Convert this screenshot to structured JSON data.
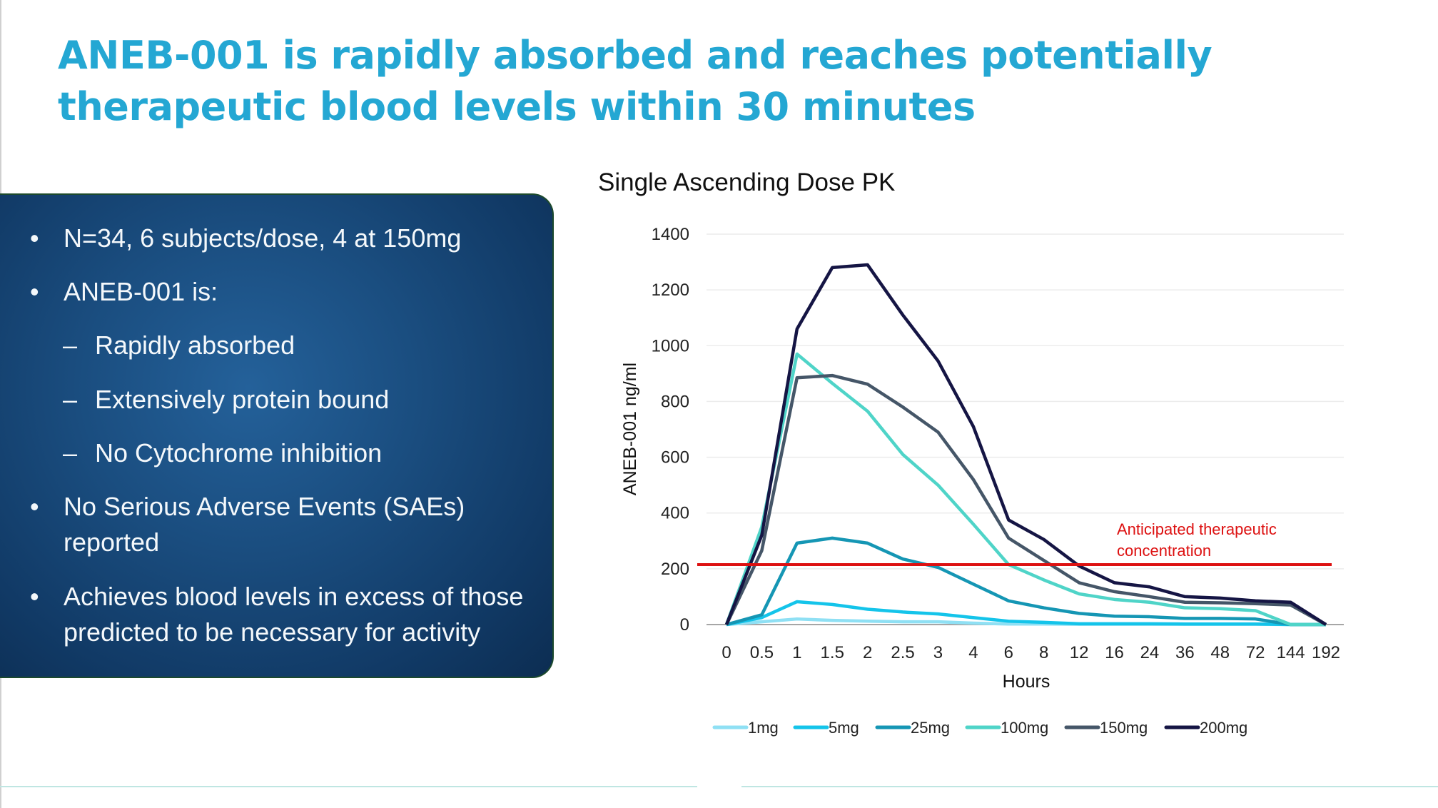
{
  "slide": {
    "title_line1": "ANEB-001 is rapidly absorbed and reaches potentially",
    "title_line2": "therapeutic blood levels within 30 minutes",
    "bullets": [
      {
        "marker": "•",
        "text": "N=34, 6 subjects/dose, 4 at 150mg",
        "level": 1
      },
      {
        "marker": "•",
        "text": "ANEB-001 is:",
        "level": 1
      },
      {
        "marker": "–",
        "text": "Rapidly absorbed",
        "level": 2
      },
      {
        "marker": "–",
        "text": "Extensively protein bound",
        "level": 2
      },
      {
        "marker": "–",
        "text": "No Cytochrome inhibition",
        "level": 2
      },
      {
        "marker": "•",
        "text": "No Serious Adverse Events (SAEs) reported",
        "level": 1
      },
      {
        "marker": "•",
        "text": "Achieves blood levels in excess of those predicted to be necessary for activity",
        "level": 1
      }
    ]
  },
  "chart_data": {
    "type": "line",
    "title": "Single Ascending Dose PK",
    "xlabel": "Hours",
    "ylabel": "ANEB-001 ng/ml",
    "ylim": [
      0,
      1400
    ],
    "yticks": [
      0,
      200,
      400,
      600,
      800,
      1000,
      1200,
      1400
    ],
    "grid": true,
    "legend": "bottom",
    "categories": [
      "0",
      "0.5",
      "1",
      "1.5",
      "2",
      "2.5",
      "3",
      "4",
      "6",
      "8",
      "12",
      "16",
      "24",
      "36",
      "48",
      "72",
      "144",
      "192"
    ],
    "series": [
      {
        "name": "1mg",
        "color": "#8fe0f4",
        "values": [
          0,
          10,
          20,
          15,
          12,
          10,
          10,
          5,
          2,
          2,
          1,
          1,
          1,
          1,
          1,
          1,
          0,
          0
        ]
      },
      {
        "name": "5mg",
        "color": "#14c4ea",
        "values": [
          0,
          25,
          82,
          72,
          55,
          45,
          38,
          25,
          12,
          8,
          3,
          3,
          3,
          2,
          2,
          2,
          0,
          0
        ]
      },
      {
        "name": "25mg",
        "color": "#1596b4",
        "values": [
          0,
          35,
          292,
          310,
          292,
          235,
          205,
          145,
          85,
          60,
          40,
          30,
          28,
          22,
          22,
          20,
          0,
          0
        ]
      },
      {
        "name": "100mg",
        "color": "#4fd4c8",
        "values": [
          0,
          350,
          970,
          865,
          765,
          610,
          500,
          360,
          215,
          160,
          110,
          90,
          80,
          60,
          57,
          50,
          0,
          0
        ]
      },
      {
        "name": "150mg",
        "color": "#455668",
        "values": [
          0,
          265,
          885,
          893,
          862,
          780,
          690,
          520,
          310,
          230,
          150,
          118,
          100,
          80,
          78,
          75,
          70,
          0
        ]
      },
      {
        "name": "200mg",
        "color": "#151544",
        "values": [
          0,
          320,
          1060,
          1280,
          1290,
          1110,
          945,
          710,
          375,
          305,
          210,
          150,
          135,
          100,
          95,
          85,
          80,
          0
        ]
      }
    ],
    "reference_line": {
      "value": 215,
      "color": "#dd1111",
      "label_line1": "Anticipated therapeutic",
      "label_line2": "concentration"
    }
  }
}
